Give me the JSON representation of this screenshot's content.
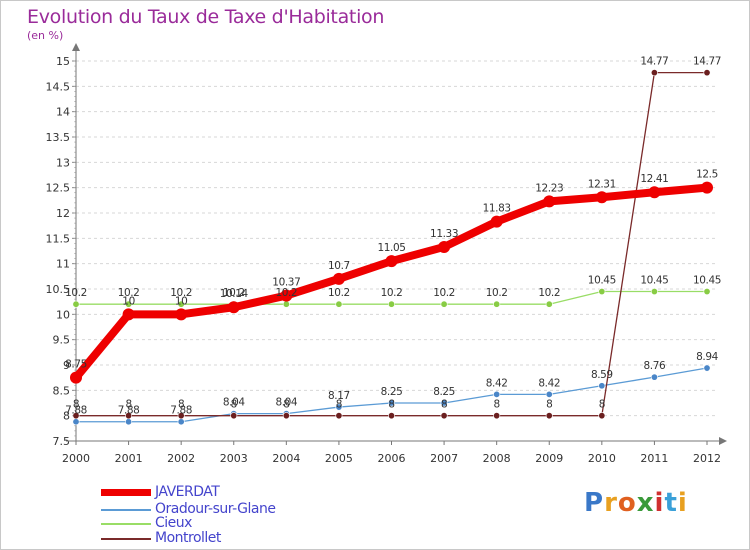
{
  "title": "Evolution du Taux de Taxe d'Habitation",
  "subtitle": "(en %)",
  "logo": "Proxiti",
  "chart_data": {
    "type": "line",
    "title": "Evolution du Taux de Taxe d'Habitation",
    "ylabel": "(en %)",
    "xlabel": "",
    "x": [
      "2000",
      "2001",
      "2002",
      "2003",
      "2004",
      "2005",
      "2006",
      "2007",
      "2008",
      "2009",
      "2010",
      "2011",
      "2012"
    ],
    "ylim": [
      7.5,
      15
    ],
    "yticks": [
      "7.5",
      "8",
      "8.5",
      "9",
      "9.5",
      "10",
      "10.5",
      "11",
      "11.5",
      "12",
      "12.5",
      "13",
      "13.5",
      "14",
      "14.5",
      "15"
    ],
    "grid": "horizontal dashed",
    "legend_position": "bottom-left",
    "series": [
      {
        "name": "JAVERDAT",
        "color": "#ee0000",
        "values": [
          8.75,
          10,
          10,
          10.14,
          10.37,
          10.7,
          11.05,
          11.33,
          11.83,
          12.23,
          12.31,
          12.41,
          12.5
        ],
        "labels": [
          "8.75",
          "10",
          "10",
          "10.14",
          "10.37",
          "10.7",
          "11.05",
          "11.33",
          "11.83",
          "12.23",
          "12.31",
          "12.41",
          "12.5"
        ]
      },
      {
        "name": "Oradour-sur-Glane",
        "color": "#5b9bd5",
        "values": [
          7.88,
          7.88,
          7.88,
          8.04,
          8.04,
          8.17,
          8.25,
          8.25,
          8.42,
          8.42,
          8.59,
          8.76,
          8.94
        ],
        "labels": [
          "7.88",
          "7.88",
          "7.88",
          "8.04",
          "8.04",
          "8.17",
          "8.25",
          "8.25",
          "8.42",
          "8.42",
          "8.59",
          "8.76",
          "8.94"
        ]
      },
      {
        "name": "Cieux",
        "color": "#99dd66",
        "values": [
          10.2,
          10.2,
          10.2,
          10.2,
          10.2,
          10.2,
          10.2,
          10.2,
          10.2,
          10.2,
          10.45,
          10.45,
          10.45
        ],
        "labels": [
          "10.2",
          "10.2",
          "10.2",
          "10.2",
          "10.2",
          "10.2",
          "10.2",
          "10.2",
          "10.2",
          "10.2",
          "10.45",
          "10.45",
          "10.45"
        ]
      },
      {
        "name": "Montrollet",
        "color": "#7a2a2a",
        "values": [
          8,
          8,
          8,
          8,
          8,
          8,
          8,
          8,
          8,
          8,
          8,
          14.77,
          14.77
        ],
        "labels": [
          "8",
          "8",
          "8",
          "8",
          "8",
          "8",
          "8",
          "8",
          "8",
          "8",
          "8",
          "14.77",
          "14.77"
        ]
      }
    ]
  }
}
